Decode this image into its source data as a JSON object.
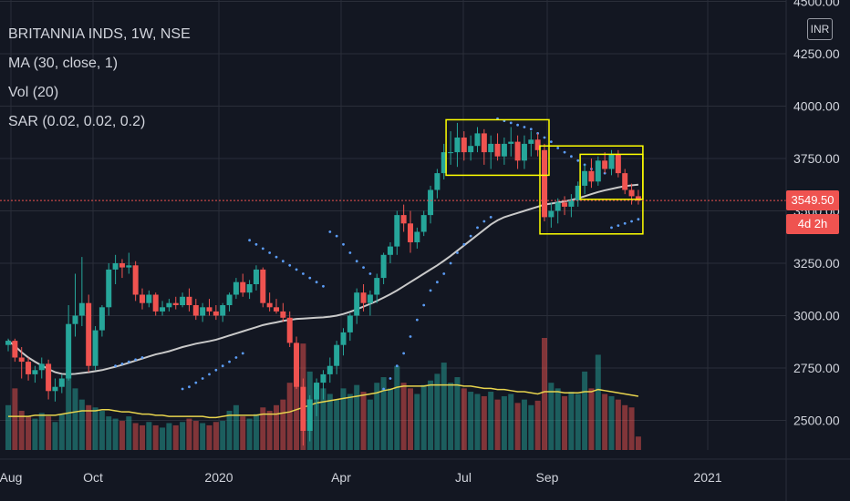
{
  "legend": {
    "title": "BRITANNIA INDS, 1W, NSE",
    "ma": "MA (30, close, 1)",
    "vol": "Vol (20)",
    "sar": "SAR (0.02, 0.02, 0.2)"
  },
  "currency": "INR",
  "price_label": "3549.50",
  "countdown": "4d 2h",
  "colors": {
    "background": "#131722",
    "up": "#26a69a",
    "down": "#ef5350",
    "ma": "#c9c9c9",
    "vol_ma": "#e8d44d",
    "box": "#ffff00",
    "grid": "#2a2e39",
    "text": "#d1d4dc"
  },
  "chart_data": {
    "type": "candlestick",
    "x_ticks": [
      "Aug",
      "Oct",
      "2020",
      "Apr",
      "Jul",
      "Sep",
      "2021"
    ],
    "y_ticks": [
      "4500.00",
      "4250.00",
      "4000.00",
      "3750.00",
      "3500.00",
      "3250.00",
      "3000.00",
      "2750.00",
      "2500.00"
    ],
    "ylim": [
      2350,
      4510
    ],
    "current_price": 3549.5,
    "start": "2019-08-05",
    "candles": [
      [
        2860,
        2890,
        2830,
        2880
      ],
      [
        2880,
        2890,
        2780,
        2800
      ],
      [
        2800,
        2850,
        2700,
        2780
      ],
      [
        2780,
        2800,
        2690,
        2720
      ],
      [
        2720,
        2760,
        2680,
        2740
      ],
      [
        2740,
        2800,
        2700,
        2770
      ],
      [
        2770,
        2790,
        2600,
        2640
      ],
      [
        2640,
        2700,
        2590,
        2660
      ],
      [
        2660,
        2720,
        2630,
        2700
      ],
      [
        2700,
        3050,
        2690,
        2960
      ],
      [
        2960,
        3200,
        2900,
        3000
      ],
      [
        3000,
        3280,
        2950,
        3060
      ],
      [
        3060,
        3100,
        2730,
        2760
      ],
      [
        2760,
        2950,
        2740,
        2930
      ],
      [
        2930,
        3050,
        2900,
        3040
      ],
      [
        3040,
        3250,
        3000,
        3220
      ],
      [
        3220,
        3290,
        3150,
        3250
      ],
      [
        3250,
        3270,
        3180,
        3230
      ],
      [
        3230,
        3300,
        3200,
        3240
      ],
      [
        3240,
        3260,
        3070,
        3100
      ],
      [
        3100,
        3130,
        3030,
        3060
      ],
      [
        3060,
        3120,
        3040,
        3100
      ],
      [
        3100,
        3110,
        3000,
        3020
      ],
      [
        3020,
        3070,
        3000,
        3040
      ],
      [
        3040,
        3080,
        3020,
        3060
      ],
      [
        3060,
        3090,
        3030,
        3050
      ],
      [
        3050,
        3110,
        3040,
        3090
      ],
      [
        3090,
        3130,
        3020,
        3050
      ],
      [
        3050,
        3080,
        2980,
        3000
      ],
      [
        3000,
        3060,
        2970,
        3040
      ],
      [
        3040,
        3080,
        3000,
        3020
      ],
      [
        3020,
        3050,
        2980,
        3000
      ],
      [
        3000,
        3060,
        2970,
        3050
      ],
      [
        3050,
        3110,
        3020,
        3100
      ],
      [
        3100,
        3180,
        3080,
        3160
      ],
      [
        3160,
        3200,
        3090,
        3110
      ],
      [
        3110,
        3170,
        3080,
        3150
      ],
      [
        3150,
        3240,
        3120,
        3220
      ],
      [
        3220,
        3230,
        3040,
        3060
      ],
      [
        3060,
        3110,
        3020,
        3040
      ],
      [
        3040,
        3080,
        3010,
        3020
      ],
      [
        3020,
        3060,
        2970,
        2990
      ],
      [
        2990,
        3020,
        2850,
        2870
      ],
      [
        2870,
        2900,
        2650,
        2660
      ],
      [
        2660,
        2700,
        2380,
        2450
      ],
      [
        2450,
        2620,
        2400,
        2600
      ],
      [
        2600,
        2700,
        2520,
        2680
      ],
      [
        2680,
        2740,
        2600,
        2720
      ],
      [
        2720,
        2800,
        2680,
        2760
      ],
      [
        2760,
        2880,
        2720,
        2860
      ],
      [
        2860,
        2940,
        2810,
        2920
      ],
      [
        2920,
        3010,
        2880,
        3000
      ],
      [
        3000,
        3130,
        2960,
        3110
      ],
      [
        3110,
        3150,
        3020,
        3060
      ],
      [
        3060,
        3120,
        3000,
        3100
      ],
      [
        3100,
        3200,
        3060,
        3180
      ],
      [
        3180,
        3300,
        3150,
        3290
      ],
      [
        3290,
        3350,
        3250,
        3330
      ],
      [
        3330,
        3500,
        3290,
        3480
      ],
      [
        3480,
        3530,
        3400,
        3440
      ],
      [
        3440,
        3500,
        3300,
        3350
      ],
      [
        3350,
        3420,
        3320,
        3400
      ],
      [
        3400,
        3500,
        3380,
        3480
      ],
      [
        3480,
        3620,
        3440,
        3600
      ],
      [
        3600,
        3700,
        3560,
        3680
      ],
      [
        3680,
        3820,
        3650,
        3780
      ],
      [
        3780,
        3880,
        3720,
        3780
      ],
      [
        3780,
        3920,
        3710,
        3850
      ],
      [
        3850,
        3880,
        3740,
        3780
      ],
      [
        3780,
        3860,
        3740,
        3810
      ],
      [
        3810,
        3900,
        3780,
        3870
      ],
      [
        3870,
        3890,
        3720,
        3780
      ],
      [
        3780,
        3860,
        3700,
        3820
      ],
      [
        3820,
        3870,
        3740,
        3760
      ],
      [
        3760,
        3850,
        3720,
        3820
      ],
      [
        3820,
        3900,
        3760,
        3830
      ],
      [
        3830,
        3860,
        3700,
        3740
      ],
      [
        3740,
        3860,
        3700,
        3820
      ],
      [
        3820,
        3880,
        3760,
        3840
      ],
      [
        3840,
        3870,
        3760,
        3790
      ],
      [
        3790,
        3820,
        3450,
        3470
      ],
      [
        3470,
        3540,
        3420,
        3500
      ],
      [
        3500,
        3560,
        3440,
        3540
      ],
      [
        3540,
        3570,
        3480,
        3520
      ],
      [
        3520,
        3580,
        3470,
        3550
      ],
      [
        3550,
        3640,
        3520,
        3620
      ],
      [
        3620,
        3720,
        3580,
        3690
      ],
      [
        3690,
        3750,
        3610,
        3640
      ],
      [
        3640,
        3760,
        3620,
        3740
      ],
      [
        3740,
        3780,
        3680,
        3700
      ],
      [
        3700,
        3790,
        3670,
        3770
      ],
      [
        3770,
        3790,
        3660,
        3680
      ],
      [
        3680,
        3700,
        3580,
        3600
      ],
      [
        3600,
        3630,
        3530,
        3570
      ],
      [
        3570,
        3600,
        3530,
        3549.5
      ]
    ],
    "volume": [
      0.4,
      0.55,
      0.35,
      0.3,
      0.28,
      0.33,
      0.3,
      0.25,
      0.32,
      0.7,
      0.55,
      0.45,
      0.4,
      0.38,
      0.35,
      0.3,
      0.28,
      0.26,
      0.3,
      0.24,
      0.22,
      0.25,
      0.22,
      0.2,
      0.24,
      0.22,
      0.25,
      0.28,
      0.26,
      0.24,
      0.22,
      0.25,
      0.26,
      0.35,
      0.4,
      0.3,
      0.28,
      0.32,
      0.38,
      0.35,
      0.4,
      0.45,
      0.6,
      0.8,
      0.95,
      0.7,
      0.6,
      0.55,
      0.5,
      0.45,
      0.55,
      0.5,
      0.58,
      0.52,
      0.45,
      0.6,
      0.65,
      0.55,
      0.75,
      0.6,
      0.55,
      0.5,
      0.58,
      0.62,
      0.68,
      0.78,
      0.6,
      0.65,
      0.55,
      0.52,
      0.5,
      0.48,
      0.52,
      0.45,
      0.48,
      0.5,
      0.42,
      0.45,
      0.4,
      0.44,
      1.0,
      0.6,
      0.55,
      0.48,
      0.52,
      0.5,
      0.7,
      0.55,
      0.85,
      0.5,
      0.48,
      0.45,
      0.4,
      0.38,
      0.12
    ],
    "ma30": [
      2880,
      2855,
      2825,
      2800,
      2780,
      2762,
      2745,
      2730,
      2722,
      2720,
      2722,
      2726,
      2730,
      2735,
      2740,
      2748,
      2756,
      2765,
      2775,
      2785,
      2795,
      2805,
      2815,
      2822,
      2830,
      2840,
      2850,
      2858,
      2866,
      2872,
      2878,
      2885,
      2895,
      2905,
      2915,
      2925,
      2935,
      2945,
      2955,
      2962,
      2968,
      2975,
      2980,
      2984,
      2986,
      2988,
      2990,
      2992,
      2995,
      3000,
      3008,
      3018,
      3030,
      3043,
      3056,
      3070,
      3086,
      3102,
      3120,
      3140,
      3160,
      3180,
      3200,
      3220,
      3240,
      3262,
      3285,
      3310,
      3335,
      3360,
      3385,
      3410,
      3435,
      3455,
      3470,
      3480,
      3490,
      3500,
      3510,
      3520,
      3530,
      3535,
      3540,
      3545,
      3552,
      3560,
      3570,
      3580,
      3590,
      3598,
      3605,
      3612,
      3618,
      3622,
      3625
    ],
    "vol_ma": [
      0.3,
      0.3,
      0.3,
      0.3,
      0.31,
      0.31,
      0.31,
      0.31,
      0.32,
      0.33,
      0.34,
      0.35,
      0.35,
      0.35,
      0.36,
      0.36,
      0.35,
      0.34,
      0.34,
      0.33,
      0.32,
      0.32,
      0.31,
      0.31,
      0.3,
      0.3,
      0.3,
      0.3,
      0.3,
      0.3,
      0.29,
      0.29,
      0.3,
      0.31,
      0.31,
      0.31,
      0.31,
      0.31,
      0.32,
      0.32,
      0.32,
      0.33,
      0.34,
      0.36,
      0.38,
      0.4,
      0.42,
      0.43,
      0.44,
      0.45,
      0.46,
      0.47,
      0.48,
      0.49,
      0.5,
      0.51,
      0.53,
      0.54,
      0.56,
      0.57,
      0.57,
      0.57,
      0.57,
      0.58,
      0.58,
      0.58,
      0.58,
      0.58,
      0.57,
      0.57,
      0.56,
      0.55,
      0.55,
      0.54,
      0.54,
      0.53,
      0.52,
      0.52,
      0.51,
      0.5,
      0.52,
      0.52,
      0.52,
      0.51,
      0.51,
      0.51,
      0.52,
      0.52,
      0.54,
      0.53,
      0.52,
      0.51,
      0.5,
      0.49,
      0.48
    ],
    "sar": [
      null,
      null,
      null,
      null,
      null,
      null,
      null,
      null,
      null,
      null,
      null,
      null,
      null,
      null,
      null,
      null,
      2760,
      2770,
      2780,
      2790,
      2800,
      null,
      null,
      null,
      null,
      null,
      2650,
      2660,
      2680,
      2700,
      2720,
      2740,
      2760,
      2780,
      2800,
      2820,
      3360,
      3340,
      3320,
      3300,
      3280,
      3260,
      3240,
      3220,
      3200,
      3180,
      3160,
      3140,
      3400,
      3380,
      3340,
      3300,
      3260,
      3230,
      3200,
      3170,
      2650,
      2700,
      2760,
      2820,
      2900,
      2980,
      3050,
      3120,
      3160,
      3200,
      3250,
      3300,
      3340,
      3380,
      3420,
      3450,
      3470,
      3940,
      3930,
      3920,
      3910,
      3900,
      3890,
      3870,
      3850,
      3830,
      3800,
      3780,
      3760,
      3740,
      3720,
      3700,
      3690,
      3680,
      3420,
      3430,
      3440,
      3450,
      3460
    ],
    "boxes": [
      {
        "from_index": 66,
        "to_index": 80,
        "top": 3935,
        "bottom": 3670
      },
      {
        "from_index": 80,
        "to_index": 94,
        "top": 3810,
        "bottom": 3390
      },
      {
        "from_index": 86,
        "to_index": 94,
        "top": 3770,
        "bottom": 3555
      }
    ]
  }
}
